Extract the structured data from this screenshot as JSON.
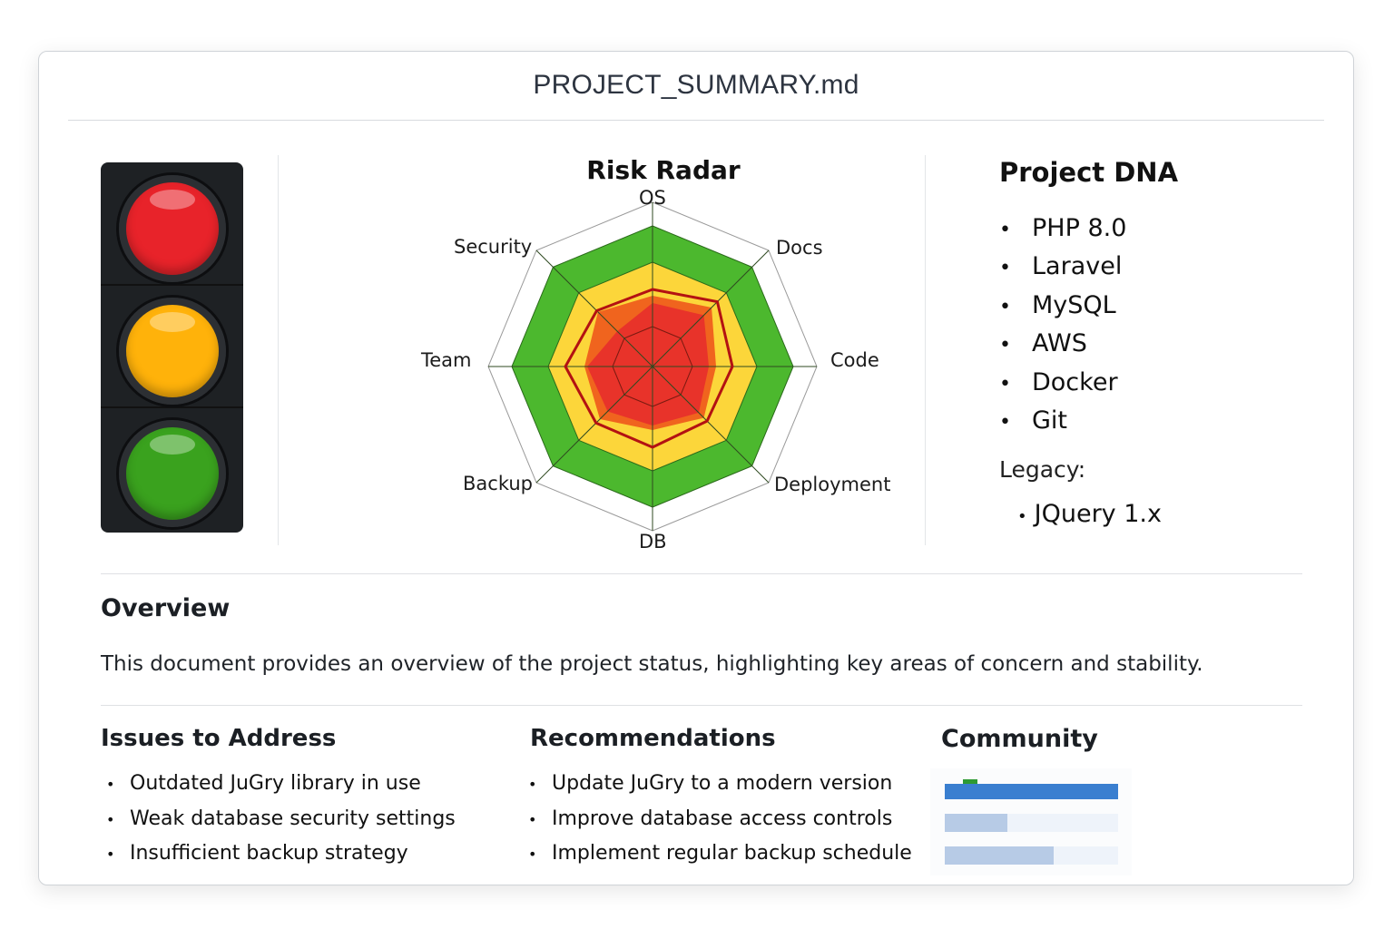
{
  "document": {
    "title": "PROJECT_SUMMARY.md"
  },
  "traffic_light": {
    "lights": [
      {
        "name": "red",
        "color": "#e8232a"
      },
      {
        "name": "amber",
        "color": "#ffb20a"
      },
      {
        "name": "green",
        "color": "#3aa21e"
      }
    ]
  },
  "chart_data": {
    "type": "radar",
    "title": "Risk Radar",
    "axes": [
      "OS",
      "Docs",
      "Code",
      "Deployment",
      "DB",
      "Backup",
      "Team",
      "Security"
    ],
    "scale_max": 181,
    "bands": [
      {
        "name": "outer",
        "radius": 181,
        "color": "#ffffff"
      },
      {
        "name": "green",
        "radius": 155,
        "color": "#4cb82e"
      },
      {
        "name": "yellow",
        "radius": 115,
        "color": "#fcd63a"
      },
      {
        "name": "inner-grid",
        "radius": 44,
        "color": "none"
      }
    ],
    "series": [
      {
        "name": "risk-outline",
        "color": "#b31212",
        "values": [
          85,
          101,
          88,
          85,
          89,
          88,
          96,
          87
        ]
      },
      {
        "name": "risk-fill-orange",
        "color": "#f0641e",
        "values": [
          78,
          92,
          70,
          80,
          70,
          82,
          75,
          85
        ]
      },
      {
        "name": "risk-fill-red",
        "color": "#e8332a",
        "values": [
          70,
          80,
          62,
          72,
          65,
          70,
          72,
          55
        ]
      }
    ],
    "grid": true,
    "legend": "none"
  },
  "dna": {
    "title": "Project DNA",
    "items": [
      "PHP 8.0",
      "Laravel",
      "MySQL",
      "AWS",
      "Docker",
      "Git"
    ],
    "legacy_label": "Legacy:",
    "legacy_items": [
      "JQuery 1.x"
    ]
  },
  "overview": {
    "heading": "Overview",
    "text": "This document provides an overview of the project status, highlighting key areas of concern and stability."
  },
  "issues": {
    "heading": "Issues to Address",
    "items": [
      "Outdated JuGry library in use",
      "Weak database security settings",
      "Insufficient backup strategy"
    ]
  },
  "recommendations": {
    "heading": "Recommendations",
    "items": [
      "Update JuGry to a modern version",
      "Improve database access controls",
      "Implement regular backup schedule"
    ]
  },
  "community": {
    "heading": "Community",
    "bars": [
      {
        "percent": 100,
        "color": "#3a7fd0"
      },
      {
        "percent": 36,
        "color": "#b7cbe6"
      },
      {
        "percent": 63,
        "color": "#b7cbe6"
      }
    ],
    "marker_color": "#2e9a33"
  },
  "bullet": "•"
}
